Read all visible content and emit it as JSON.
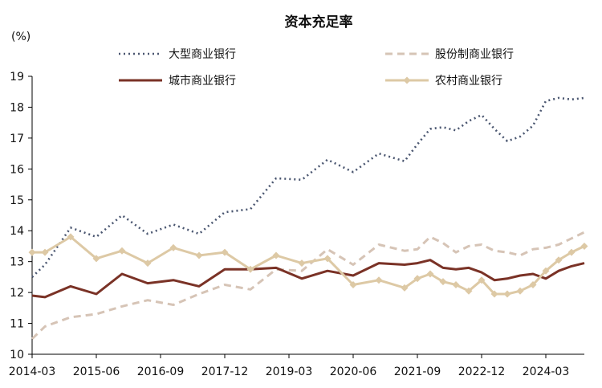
{
  "chart_data": {
    "type": "line",
    "title": "资本充足率",
    "unit_label": "(%)",
    "xlabel": "",
    "ylabel": "",
    "ylim": [
      10,
      19
    ],
    "yticks": [
      10,
      11,
      12,
      13,
      14,
      15,
      16,
      17,
      18,
      19
    ],
    "xticks": [
      "2014-03",
      "2015-06",
      "2016-09",
      "2017-12",
      "2019-03",
      "2020-06",
      "2021-09",
      "2022-12",
      "2024-03"
    ],
    "legend_position": "top",
    "grid": false,
    "x": [
      "2014-03",
      "2014-06",
      "2014-09",
      "2014-12",
      "2015-03",
      "2015-06",
      "2015-09",
      "2015-12",
      "2016-03",
      "2016-06",
      "2016-09",
      "2016-12",
      "2017-03",
      "2017-06",
      "2017-09",
      "2017-12",
      "2018-03",
      "2018-06",
      "2018-09",
      "2018-12",
      "2019-03",
      "2019-06",
      "2019-09",
      "2019-12",
      "2020-03",
      "2020-06",
      "2020-09",
      "2020-12",
      "2021-03",
      "2021-06",
      "2021-09",
      "2021-12",
      "2022-03",
      "2022-06",
      "2022-09",
      "2022-12",
      "2023-03",
      "2023-06",
      "2023-09",
      "2023-12",
      "2024-03",
      "2024-06",
      "2024-09",
      "2024-12"
    ],
    "series": [
      {
        "name": "大型商业银行",
        "color": "#4a5670",
        "style": "dotted",
        "x": [
          "2014-03",
          "2014-06",
          "2014-12",
          "2015-06",
          "2015-12",
          "2016-06",
          "2016-12",
          "2017-06",
          "2017-12",
          "2018-06",
          "2018-12",
          "2019-06",
          "2019-12",
          "2020-06",
          "2020-12",
          "2021-06",
          "2021-09",
          "2021-12",
          "2022-03",
          "2022-06",
          "2022-09",
          "2022-12",
          "2023-03",
          "2023-06",
          "2023-09",
          "2023-12",
          "2024-03",
          "2024-06",
          "2024-09",
          "2024-12"
        ],
        "values": [
          12.5,
          12.9,
          14.1,
          13.8,
          14.5,
          13.9,
          14.2,
          13.9,
          14.6,
          14.7,
          15.7,
          15.65,
          16.3,
          15.9,
          16.5,
          16.25,
          16.8,
          17.3,
          17.35,
          17.25,
          17.55,
          17.75,
          17.3,
          16.9,
          17.05,
          17.4,
          18.2,
          18.3,
          18.25,
          18.3
        ]
      },
      {
        "name": "股份制商业银行",
        "color": "#d6c4b6",
        "style": "dashed",
        "x": [
          "2014-03",
          "2014-06",
          "2014-09",
          "2014-12",
          "2015-06",
          "2015-12",
          "2016-06",
          "2016-12",
          "2017-06",
          "2017-12",
          "2018-06",
          "2018-12",
          "2019-06",
          "2019-12",
          "2020-06",
          "2020-12",
          "2021-06",
          "2021-09",
          "2021-12",
          "2022-03",
          "2022-06",
          "2022-09",
          "2022-12",
          "2023-03",
          "2023-06",
          "2023-09",
          "2023-12",
          "2024-03",
          "2024-06",
          "2024-09",
          "2024-12"
        ],
        "values": [
          10.5,
          10.9,
          11.05,
          11.2,
          11.3,
          11.55,
          11.75,
          11.6,
          11.95,
          12.25,
          12.1,
          12.75,
          12.7,
          13.4,
          12.9,
          13.55,
          13.35,
          13.4,
          13.8,
          13.6,
          13.3,
          13.5,
          13.55,
          13.35,
          13.3,
          13.2,
          13.4,
          13.45,
          13.55,
          13.75,
          13.95
        ]
      },
      {
        "name": "城市商业银行",
        "color": "#7a3226",
        "style": "solid",
        "x": [
          "2014-03",
          "2014-06",
          "2014-12",
          "2015-06",
          "2015-12",
          "2016-06",
          "2016-12",
          "2017-06",
          "2017-12",
          "2018-06",
          "2018-12",
          "2019-06",
          "2019-12",
          "2020-06",
          "2020-12",
          "2021-06",
          "2021-09",
          "2021-12",
          "2022-03",
          "2022-06",
          "2022-09",
          "2022-12",
          "2023-03",
          "2023-06",
          "2023-09",
          "2023-12",
          "2024-03",
          "2024-06",
          "2024-09",
          "2024-12"
        ],
        "values": [
          11.9,
          11.85,
          12.2,
          11.95,
          12.6,
          12.3,
          12.4,
          12.2,
          12.75,
          12.75,
          12.8,
          12.45,
          12.7,
          12.55,
          12.95,
          12.9,
          12.95,
          13.05,
          12.8,
          12.75,
          12.8,
          12.65,
          12.4,
          12.45,
          12.55,
          12.6,
          12.45,
          12.7,
          12.85,
          12.95
        ]
      },
      {
        "name": "农村商业银行",
        "color": "#ddc9a5",
        "style": "solid-diamond",
        "x": [
          "2014-03",
          "2014-06",
          "2014-12",
          "2015-06",
          "2015-12",
          "2016-06",
          "2016-12",
          "2017-06",
          "2017-12",
          "2018-06",
          "2018-12",
          "2019-06",
          "2019-12",
          "2020-06",
          "2020-12",
          "2021-06",
          "2021-09",
          "2021-12",
          "2022-03",
          "2022-06",
          "2022-09",
          "2022-12",
          "2023-03",
          "2023-06",
          "2023-09",
          "2023-12",
          "2024-03",
          "2024-06",
          "2024-09",
          "2024-12"
        ],
        "values": [
          13.3,
          13.3,
          13.8,
          13.1,
          13.35,
          12.95,
          13.45,
          13.2,
          13.3,
          12.75,
          13.2,
          12.95,
          13.1,
          12.25,
          12.4,
          12.15,
          12.45,
          12.6,
          12.35,
          12.25,
          12.05,
          12.4,
          11.95,
          11.95,
          12.05,
          12.25,
          12.7,
          13.05,
          13.3,
          13.5
        ]
      }
    ]
  }
}
